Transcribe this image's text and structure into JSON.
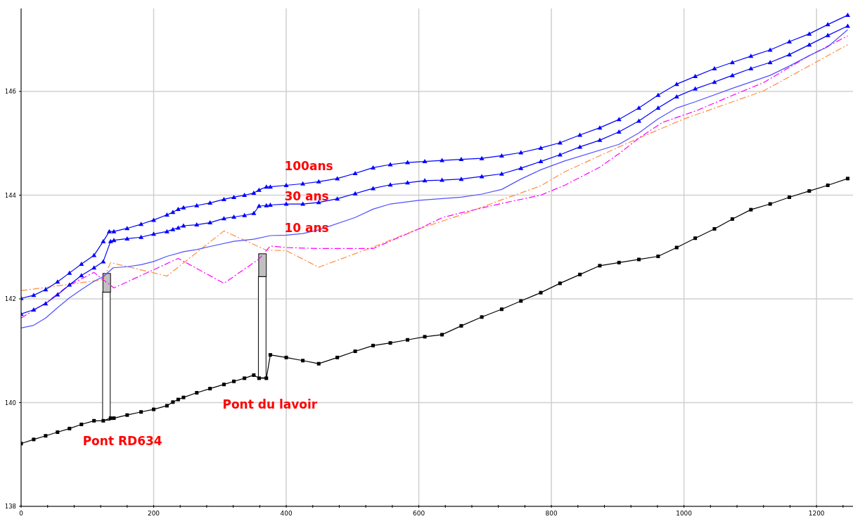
{
  "chart_data": {
    "type": "line",
    "xlim": [
      0,
      1255
    ],
    "ylim": [
      138,
      147.6
    ],
    "xticks": [
      0,
      {
        "value": 40,
        "label": null
      },
      {
        "value": 80,
        "label": null
      },
      {
        "value": 120,
        "label": null
      },
      {
        "value": 160,
        "label": null
      },
      200,
      {
        "value": 240,
        "label": null
      },
      {
        "value": 280,
        "label": null
      },
      {
        "value": 320,
        "label": null
      },
      {
        "value": 360,
        "label": null
      },
      400,
      {
        "value": 440,
        "label": null
      },
      {
        "value": 480,
        "label": null
      },
      {
        "value": 520,
        "label": null
      },
      {
        "value": 560,
        "label": null
      },
      600,
      {
        "value": 640,
        "label": null
      },
      {
        "value": 680,
        "label": null
      },
      {
        "value": 720,
        "label": null
      },
      {
        "value": 760,
        "label": null
      },
      800,
      {
        "value": 840,
        "label": null
      },
      {
        "value": 880,
        "label": null
      },
      {
        "value": 920,
        "label": null
      },
      {
        "value": 960,
        "label": null
      },
      1000,
      {
        "value": 1040,
        "label": null
      },
      {
        "value": 1080,
        "label": null
      },
      {
        "value": 1120,
        "label": null
      },
      {
        "value": 1160,
        "label": null
      },
      1200,
      {
        "value": 1240,
        "label": null
      }
    ],
    "yticks": [
      138,
      140,
      142,
      144,
      146
    ],
    "grid": true,
    "series": [
      {
        "type": "bar",
        "color": "#ffffff",
        "x": [
          129,
          364
        ],
        "base": [
          139.66,
          140.48
        ],
        "values": [
          2.47,
          1.95
        ]
      },
      {
        "type": "bar",
        "color": "#c0c0c0",
        "x": [
          129,
          364
        ],
        "base": [
          142.13,
          142.43
        ],
        "values": [
          0.36,
          0.44
        ]
      },
      {
        "color": "#ff8c40",
        "line_style": "dashed",
        "marker": "none",
        "x": [
          0,
          37,
          124,
          135,
          220,
          306,
          370,
          400,
          449,
          531,
          600,
          664,
          725,
          784,
          820,
          902,
          932,
          1000,
          1120,
          1247
        ],
        "values": [
          142.16,
          142.22,
          142.37,
          142.7,
          142.44,
          143.31,
          142.94,
          142.93,
          142.61,
          143.0,
          143.35,
          143.62,
          143.91,
          144.18,
          144.45,
          144.93,
          145.1,
          145.47,
          146.01,
          146.9
        ]
      },
      {
        "color": "#ff00ff",
        "line_style": "dashed",
        "marker": "none",
        "x": [
          0,
          37,
          73,
          110,
          140,
          237,
          306,
          359,
          376,
          400,
          449,
          531,
          600,
          636,
          664,
          725,
          784,
          820,
          873,
          902,
          932,
          967,
          1019,
          1067,
          1120,
          1189,
          1247
        ],
        "values": [
          141.63,
          141.92,
          142.27,
          142.51,
          142.21,
          142.78,
          142.3,
          142.77,
          143.02,
          142.99,
          142.97,
          142.97,
          143.35,
          143.57,
          143.66,
          143.84,
          144.0,
          144.19,
          144.54,
          144.8,
          145.1,
          145.4,
          145.63,
          145.89,
          146.17,
          146.69,
          147.07
        ]
      },
      {
        "color": "#5050ff",
        "line_style": "solid",
        "marker": "none",
        "x": [
          0,
          19,
          37,
          55,
          73,
          91,
          110,
          124,
          139,
          160,
          181,
          200,
          220,
          245,
          265,
          285,
          321,
          351,
          376,
          400,
          425,
          449,
          504,
          531,
          557,
          600,
          664,
          695,
          725,
          754,
          784,
          820,
          902,
          932,
          961,
          989,
          1017,
          1073,
          1130,
          1159,
          1189,
          1217,
          1247
        ],
        "values": [
          141.44,
          141.49,
          141.63,
          141.83,
          142.02,
          142.18,
          142.34,
          142.43,
          142.6,
          142.62,
          142.66,
          142.72,
          142.82,
          142.91,
          142.95,
          143.01,
          143.11,
          143.15,
          143.22,
          143.23,
          143.26,
          143.33,
          143.57,
          143.73,
          143.83,
          143.9,
          143.96,
          144.02,
          144.11,
          144.31,
          144.49,
          144.66,
          144.98,
          145.2,
          145.47,
          145.68,
          145.8,
          146.06,
          146.31,
          146.49,
          146.69,
          146.86,
          147.19
        ]
      },
      {
        "color": "#0000ff",
        "line_style": "solid",
        "marker": "triangle",
        "x": [
          0,
          19,
          37,
          55,
          73,
          91,
          110,
          124,
          135,
          140,
          160,
          181,
          200,
          220,
          229,
          237,
          245,
          265,
          285,
          306,
          321,
          337,
          351,
          359,
          370,
          376,
          400,
          425,
          449,
          477,
          504,
          531,
          557,
          583,
          609,
          635,
          664,
          695,
          725,
          754,
          784,
          813,
          843,
          873,
          902,
          932,
          961,
          989,
          1017,
          1046,
          1073,
          1101,
          1130,
          1159,
          1189,
          1217,
          1247
        ],
        "values": [
          141.71,
          141.79,
          141.91,
          142.08,
          142.27,
          142.45,
          142.6,
          142.72,
          143.11,
          143.13,
          143.16,
          143.19,
          143.25,
          143.3,
          143.34,
          143.37,
          143.41,
          143.43,
          143.47,
          143.55,
          143.58,
          143.61,
          143.65,
          143.79,
          143.8,
          143.81,
          143.83,
          143.83,
          143.86,
          143.93,
          144.03,
          144.13,
          144.2,
          144.24,
          144.28,
          144.29,
          144.31,
          144.36,
          144.41,
          144.52,
          144.65,
          144.78,
          144.93,
          145.06,
          145.22,
          145.43,
          145.68,
          145.9,
          146.05,
          146.18,
          146.31,
          146.44,
          146.56,
          146.71,
          146.9,
          147.08,
          147.26
        ]
      },
      {
        "color": "#0000ff",
        "line_style": "solid",
        "marker": "triangle",
        "x": [
          0,
          19,
          37,
          55,
          73,
          91,
          110,
          124,
          133,
          140,
          160,
          181,
          200,
          220,
          229,
          237,
          245,
          265,
          285,
          306,
          321,
          337,
          351,
          359,
          370,
          376,
          400,
          425,
          449,
          477,
          504,
          531,
          557,
          583,
          609,
          635,
          664,
          695,
          725,
          754,
          784,
          813,
          843,
          873,
          902,
          932,
          961,
          989,
          1017,
          1046,
          1073,
          1101,
          1130,
          1159,
          1189,
          1217,
          1247
        ],
        "values": [
          142.01,
          142.07,
          142.18,
          142.33,
          142.5,
          142.67,
          142.84,
          143.11,
          143.3,
          143.3,
          143.36,
          143.44,
          143.52,
          143.62,
          143.67,
          143.73,
          143.76,
          143.8,
          143.85,
          143.92,
          143.96,
          144.0,
          144.04,
          144.1,
          144.16,
          144.16,
          144.19,
          144.22,
          144.26,
          144.32,
          144.42,
          144.53,
          144.59,
          144.63,
          144.65,
          144.67,
          144.69,
          144.71,
          144.76,
          144.82,
          144.91,
          145.01,
          145.16,
          145.3,
          145.46,
          145.68,
          145.93,
          146.14,
          146.29,
          146.44,
          146.56,
          146.68,
          146.8,
          146.96,
          147.11,
          147.29,
          147.47
        ]
      },
      {
        "color": "#000000",
        "line_style": "solid",
        "marker": "square",
        "x": [
          0,
          19,
          37,
          55,
          73,
          91,
          110,
          124,
          135,
          140,
          160,
          181,
          200,
          220,
          229,
          237,
          245,
          265,
          285,
          306,
          321,
          337,
          351,
          359,
          370,
          376,
          400,
          425,
          449,
          477,
          504,
          531,
          557,
          583,
          609,
          635,
          664,
          695,
          725,
          754,
          784,
          813,
          843,
          873,
          902,
          932,
          961,
          989,
          1017,
          1046,
          1073,
          1101,
          1130,
          1159,
          1189,
          1217,
          1247
        ],
        "values": [
          139.21,
          139.29,
          139.36,
          139.43,
          139.5,
          139.58,
          139.65,
          139.65,
          139.7,
          139.7,
          139.76,
          139.82,
          139.87,
          139.94,
          140.01,
          140.06,
          140.1,
          140.19,
          140.27,
          140.35,
          140.41,
          140.47,
          140.53,
          140.47,
          140.47,
          140.92,
          140.87,
          140.81,
          140.75,
          140.87,
          140.99,
          141.1,
          141.15,
          141.21,
          141.27,
          141.31,
          141.48,
          141.65,
          141.8,
          141.96,
          142.12,
          142.3,
          142.47,
          142.64,
          142.7,
          142.76,
          142.82,
          142.99,
          143.17,
          143.35,
          143.54,
          143.72,
          143.83,
          143.96,
          144.08,
          144.19,
          144.32
        ]
      }
    ],
    "annotations": [
      "100ans",
      "30 ans",
      "10 ans",
      "Pont du lavoir",
      "Pont RD634"
    ]
  }
}
